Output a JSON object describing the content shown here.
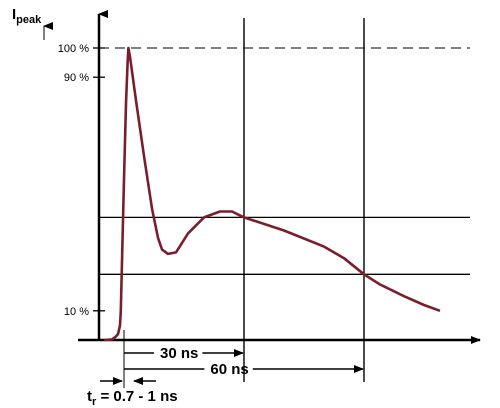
{
  "chart_data": {
    "type": "line",
    "y_axis": {
      "label_main": "I",
      "label_sub": "peak",
      "ticks": [
        {
          "label": "100 %",
          "value": 100
        },
        {
          "label": "90 %",
          "value": 90
        },
        {
          "label": "10 %",
          "value": 10
        }
      ]
    },
    "x_axis": {
      "unit": "ns"
    },
    "waveform_points": [
      [
        -5,
        0
      ],
      [
        -3,
        0.2
      ],
      [
        -2.2,
        1
      ],
      [
        -1.5,
        2
      ],
      [
        -1,
        5
      ],
      [
        -0.8,
        10
      ],
      [
        0,
        55
      ],
      [
        0.5,
        81
      ],
      [
        0.9,
        95
      ],
      [
        1.1,
        100
      ],
      [
        1.5,
        97
      ],
      [
        3,
        82
      ],
      [
        5,
        63
      ],
      [
        7,
        45
      ],
      [
        8.5,
        35
      ],
      [
        9.5,
        31
      ],
      [
        11,
        29.5
      ],
      [
        13,
        30
      ],
      [
        16,
        36.5
      ],
      [
        20,
        42
      ],
      [
        24,
        44
      ],
      [
        27,
        44
      ],
      [
        30,
        42
      ],
      [
        40,
        37.5
      ],
      [
        50,
        32
      ],
      [
        55,
        28
      ],
      [
        60,
        22.5
      ],
      [
        64,
        19
      ],
      [
        70,
        15
      ],
      [
        75,
        12
      ],
      [
        79,
        10
      ]
    ],
    "time_markers": [
      {
        "label": "30 ns",
        "t": 30,
        "current_percent": 42
      },
      {
        "label": "60 ns",
        "t": 60,
        "current_percent": 22.5
      }
    ],
    "reference_lines_percent": [
      100,
      42,
      22.5
    ],
    "rise_time_label": {
      "main": "t",
      "sub": "r",
      "text": " = 0.7 - 1 ns"
    },
    "grid": false,
    "colors": {
      "curve": "#7a1e2e",
      "axis": "#000000"
    }
  }
}
